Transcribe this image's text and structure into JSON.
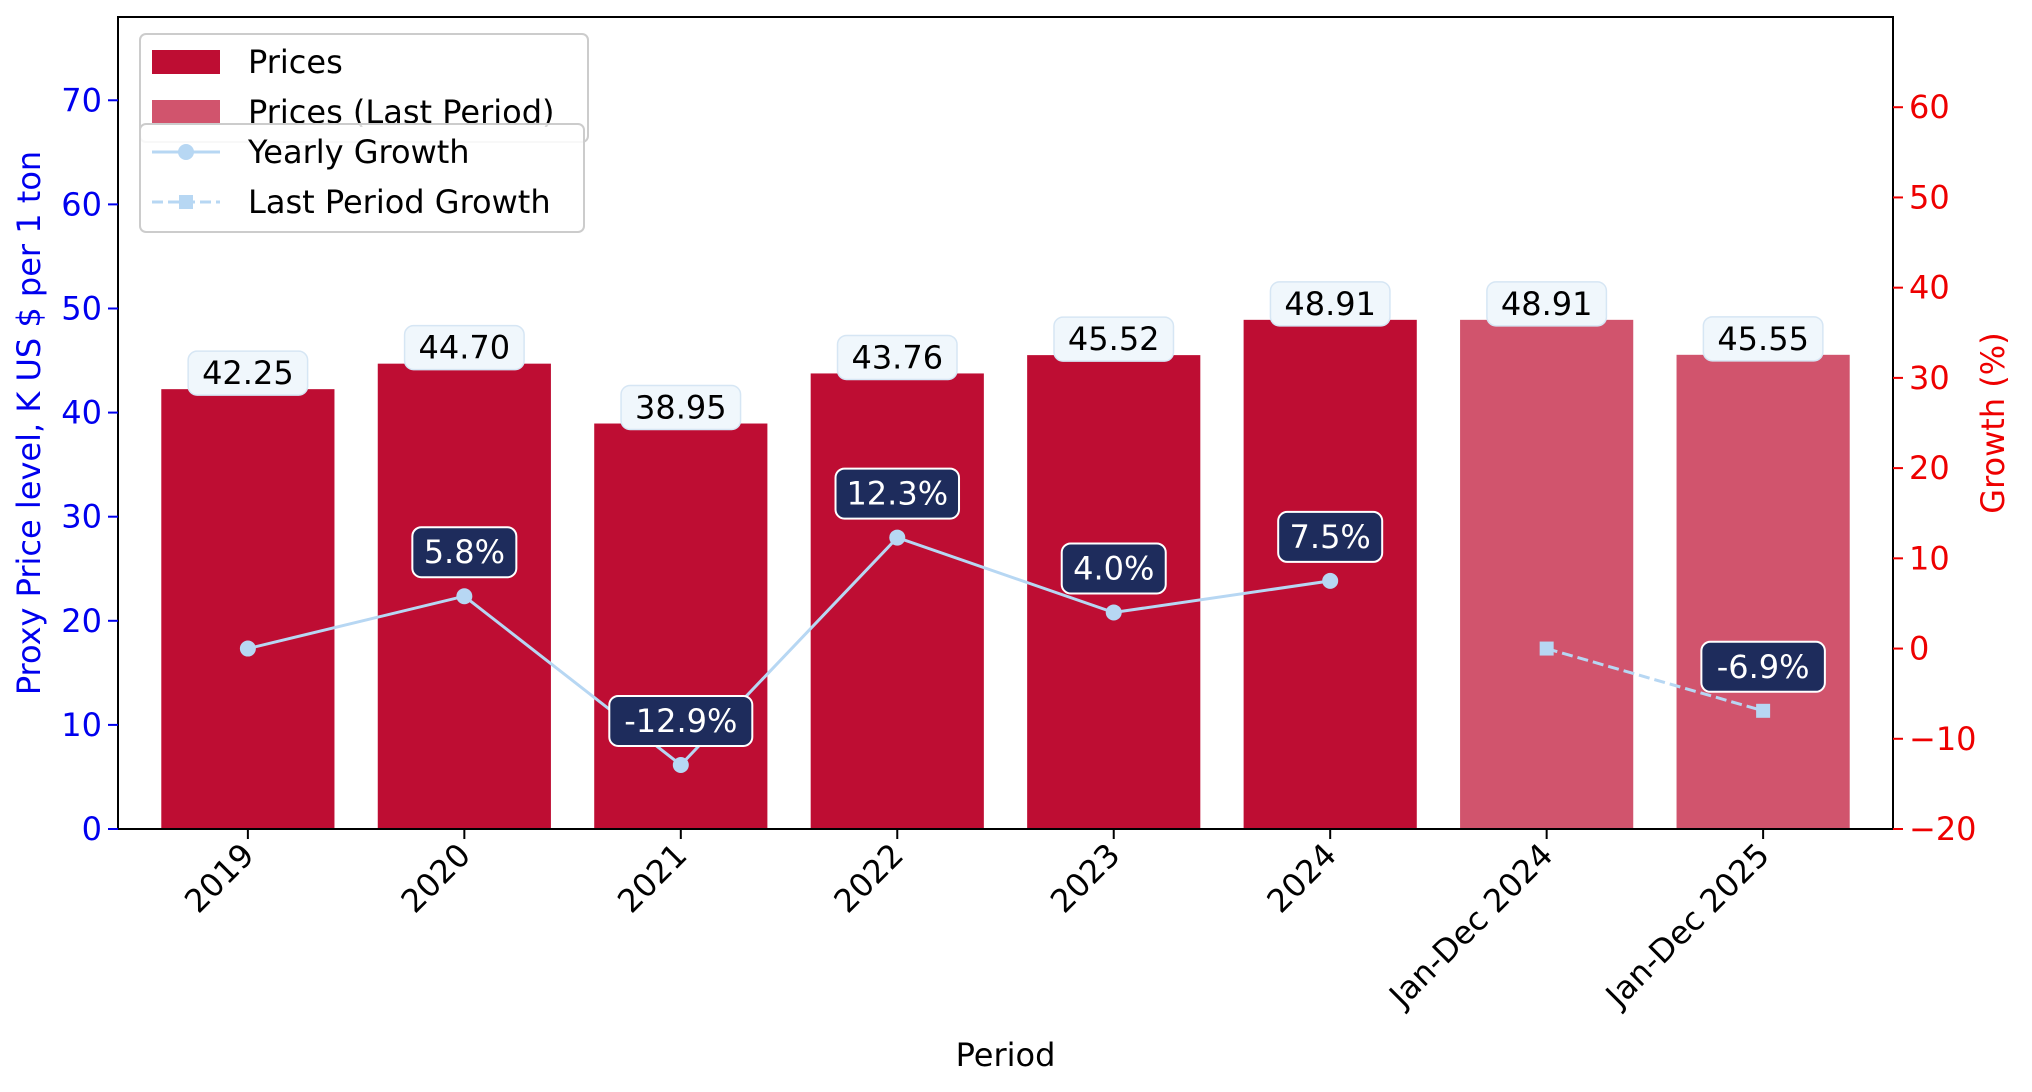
{
  "chart_data": {
    "type": "bar",
    "categories": [
      "2019",
      "2020",
      "2021",
      "2022",
      "2023",
      "2024",
      "Jan-Dec 2024",
      "Jan-Dec 2025"
    ],
    "series": [
      {
        "name": "Prices",
        "kind": "bar",
        "axis": "left",
        "values": [
          42.25,
          44.7,
          38.95,
          43.76,
          45.52,
          48.91,
          null,
          null
        ],
        "labels": [
          "42.25",
          "44.70",
          "38.95",
          "43.76",
          "45.52",
          "48.91",
          "",
          ""
        ]
      },
      {
        "name": "Prices (Last Period)",
        "kind": "bar",
        "axis": "left",
        "values": [
          null,
          null,
          null,
          null,
          null,
          null,
          48.91,
          45.55
        ],
        "labels": [
          "",
          "",
          "",
          "",
          "",
          "",
          "48.91",
          "45.55"
        ]
      },
      {
        "name": "Yearly Growth",
        "kind": "line",
        "axis": "right",
        "marker": "circle",
        "dash": "solid",
        "values": [
          0.0,
          5.8,
          -12.9,
          12.3,
          4.0,
          7.5,
          null,
          null
        ],
        "labels": [
          "",
          "5.8%",
          "-12.9%",
          "12.3%",
          "4.0%",
          "7.5%",
          "",
          ""
        ]
      },
      {
        "name": "Last Period Growth",
        "kind": "line",
        "axis": "right",
        "marker": "square",
        "dash": "dashed",
        "values": [
          null,
          null,
          null,
          null,
          null,
          null,
          0.0,
          -6.9
        ],
        "labels": [
          "",
          "",
          "",
          "",
          "",
          "",
          "",
          "-6.9%"
        ]
      }
    ],
    "xlabel": "Period",
    "ylabel": "Proxy Price level, K US $ per 1 ton",
    "ylabel_right": "Growth (%)",
    "ylim": [
      0,
      78
    ],
    "ylim_right": [
      -20,
      70
    ],
    "yticks": [
      0,
      10,
      20,
      30,
      40,
      50,
      60,
      70
    ],
    "yticks_right": [
      -20,
      -10,
      0,
      10,
      20,
      30,
      40,
      50,
      60
    ],
    "ytick_labels_right": [
      "−20",
      "−10",
      "0",
      "10",
      "20",
      "30",
      "40",
      "50",
      "60"
    ],
    "grid": false,
    "legend": [
      "upper left",
      "upper left"
    ],
    "colors": {
      "bar": "#be0d33",
      "bar_last": "#d1546d",
      "line": "#b7d7f3",
      "left_axis": "#0000ee",
      "right_axis": "#ee0000",
      "growth_label_bg": "#1e2c5c",
      "value_label_bg": "#f0f7fc"
    }
  }
}
